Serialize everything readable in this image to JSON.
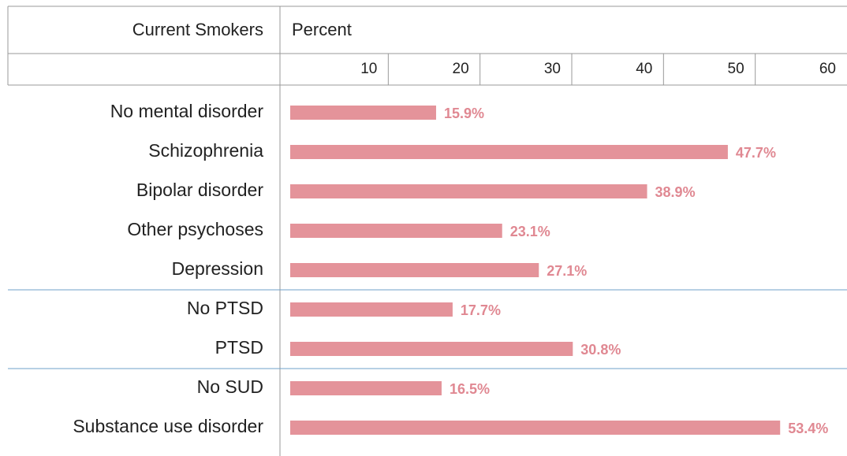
{
  "chart_data": {
    "type": "bar",
    "orientation": "horizontal",
    "header_label": "Current Smokers",
    "axis_title": "Percent",
    "categories": [
      "No mental disorder",
      "Schizophrenia",
      "Bipolar disorder",
      "Other psychoses",
      "Depression",
      "No PTSD",
      "PTSD",
      "No SUD",
      "Substance use disorder"
    ],
    "values": [
      15.9,
      47.7,
      38.9,
      23.1,
      27.1,
      17.7,
      30.8,
      16.5,
      53.4
    ],
    "value_labels": [
      "15.9%",
      "47.7%",
      "38.9%",
      "23.1%",
      "27.1%",
      "17.7%",
      "30.8%",
      "16.5%",
      "53.4%"
    ],
    "color": "#e4939a",
    "xlim": [
      0,
      60
    ],
    "xticks": [
      10,
      20,
      30,
      40,
      50,
      60
    ]
  }
}
